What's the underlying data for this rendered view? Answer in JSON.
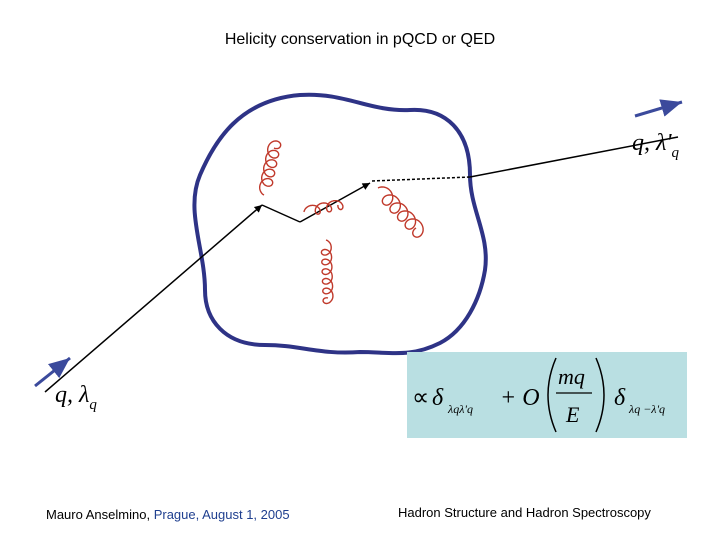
{
  "title": "Helicity conservation in pQCD or QED",
  "incoming_label": {
    "main": "q, λ",
    "sub": "q"
  },
  "outgoing_label": {
    "main": "q, λ'",
    "sub": "q"
  },
  "formula": {
    "prop": "∝",
    "delta1": "δ",
    "sub1": "λqλ'q",
    "plus_o": "+ O",
    "numerator": "mq",
    "denominator": "E",
    "delta2": "δ",
    "sub2": "λq −λ'q"
  },
  "footer": {
    "author": "Mauro Anselmino,",
    "place_date": "Prague, August 1, 2005",
    "conference": "Hadron Structure and Hadron Spectroscopy"
  }
}
